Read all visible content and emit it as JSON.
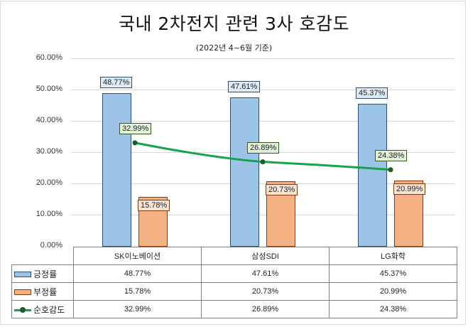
{
  "chart_data": {
    "type": "bar",
    "title": "국내 2차전지 관련 3사 호감도",
    "subtitle": "(2022년 4~6월 기준)",
    "xlabel": "",
    "ylabel": "",
    "ylim": [
      0,
      60
    ],
    "yticks": [
      "0.00%",
      "10.00%",
      "20.00%",
      "30.00%",
      "40.00%",
      "50.00%",
      "60.00%"
    ],
    "grid": true,
    "legend_position": "data-table",
    "categories": [
      "SK이노베이션",
      "삼성SDI",
      "LG화학"
    ],
    "series": [
      {
        "name": "긍정률",
        "type": "bar",
        "color": "#9dc3e6",
        "values": [
          48.77,
          47.61,
          45.37
        ],
        "labels": [
          "48.77%",
          "47.61%",
          "45.37%"
        ]
      },
      {
        "name": "부정률",
        "type": "bar",
        "color": "#f4b183",
        "values": [
          15.78,
          20.73,
          20.99
        ],
        "labels": [
          "15.78%",
          "20.73%",
          "20.99%"
        ]
      },
      {
        "name": "순호감도",
        "type": "line",
        "color": "#13a44c",
        "values": [
          32.99,
          26.89,
          24.38
        ],
        "labels": [
          "32.99%",
          "26.89%",
          "24.38%"
        ]
      }
    ]
  }
}
